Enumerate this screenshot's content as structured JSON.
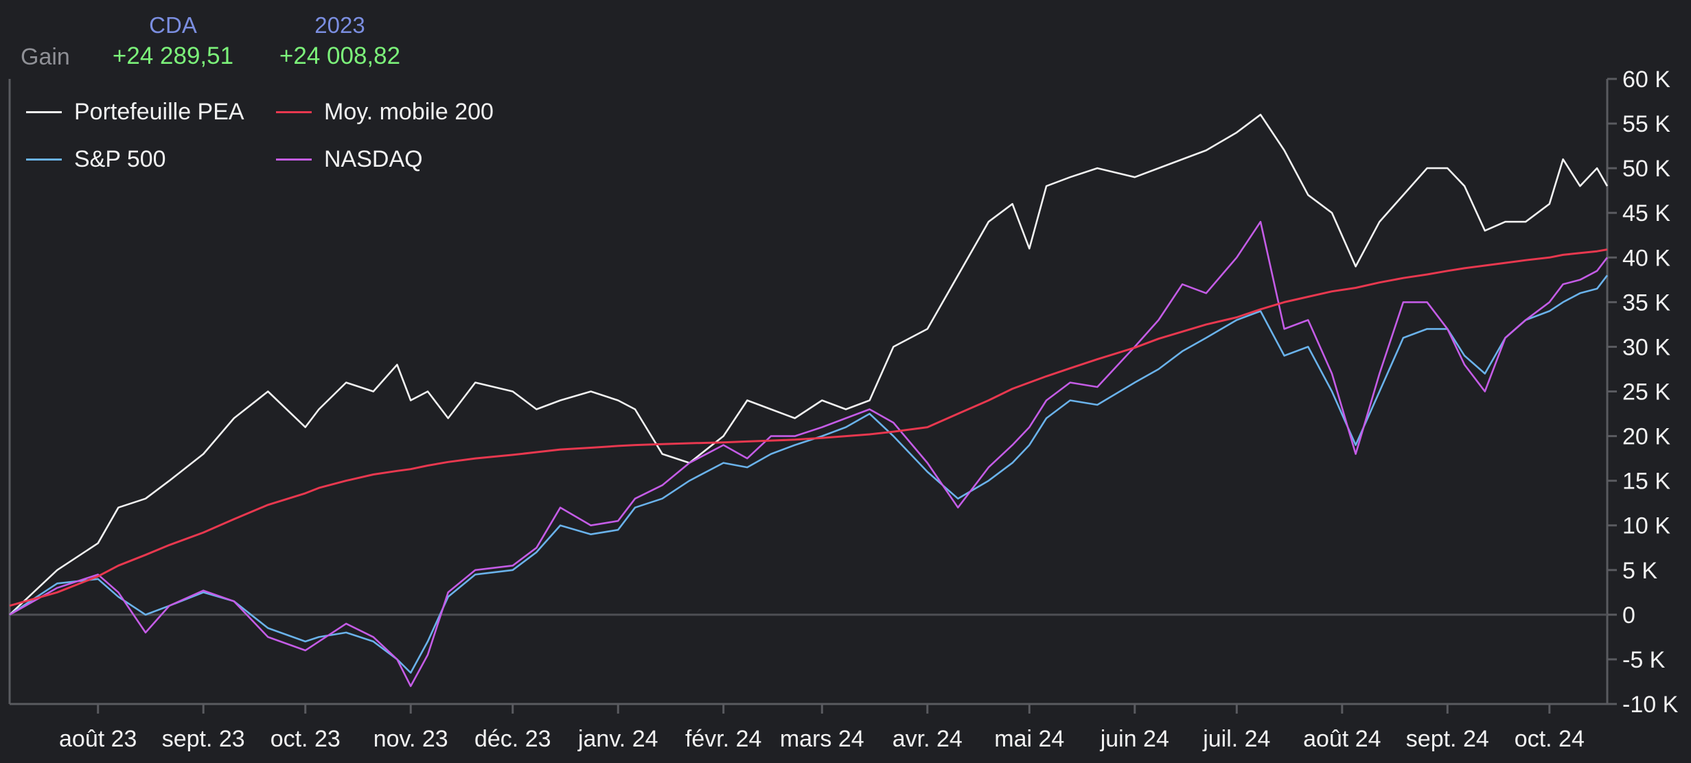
{
  "header": {
    "row_label": "Gain",
    "columns": [
      {
        "title": "CDA",
        "value": "+24 289,51"
      },
      {
        "title": "2023",
        "value": "+24 008,82"
      }
    ]
  },
  "colors": {
    "background": "#1f2024",
    "portefeuille": "#f2f2f2",
    "moyenne": "#e8384f",
    "sp500": "#6ab2ea",
    "nasdaq": "#c45ce6",
    "axis": "#5a5b60",
    "zero_line": "#4e4f54",
    "tick_text": "#f2f2f2",
    "gain_value": "#7cf27a",
    "column_title": "#7b8ee0"
  },
  "chart_data": {
    "type": "line",
    "title": "",
    "xlabel": "",
    "ylabel": "",
    "ylim": [
      -10000,
      60000
    ],
    "yticks": [
      {
        "value": 60000,
        "label": "60 K"
      },
      {
        "value": 55000,
        "label": "55 K"
      },
      {
        "value": 50000,
        "label": "50 K"
      },
      {
        "value": 45000,
        "label": "45 K"
      },
      {
        "value": 40000,
        "label": "40 K"
      },
      {
        "value": 35000,
        "label": "35 K"
      },
      {
        "value": 30000,
        "label": "30 K"
      },
      {
        "value": 25000,
        "label": "25 K"
      },
      {
        "value": 20000,
        "label": "20 K"
      },
      {
        "value": 15000,
        "label": "15 K"
      },
      {
        "value": 10000,
        "label": "10 K"
      },
      {
        "value": 5000,
        "label": "5 K"
      },
      {
        "value": 0,
        "label": "0"
      },
      {
        "value": -5000,
        "label": "-5 K"
      },
      {
        "value": -10000,
        "label": "-10 K"
      }
    ],
    "xlim": [
      "2023-07-06",
      "2024-10-18"
    ],
    "xticks": [
      {
        "date": "2023-08-01",
        "label": "août 23"
      },
      {
        "date": "2023-09-01",
        "label": "sept. 23"
      },
      {
        "date": "2023-10-01",
        "label": "oct. 23"
      },
      {
        "date": "2023-11-01",
        "label": "nov. 23"
      },
      {
        "date": "2023-12-01",
        "label": "déc. 23"
      },
      {
        "date": "2024-01-01",
        "label": "janv. 24"
      },
      {
        "date": "2024-02-01",
        "label": "févr. 24"
      },
      {
        "date": "2024-03-01",
        "label": "mars 24"
      },
      {
        "date": "2024-04-01",
        "label": "avr. 24"
      },
      {
        "date": "2024-05-01",
        "label": "mai 24"
      },
      {
        "date": "2024-06-01",
        "label": "juin 24"
      },
      {
        "date": "2024-07-01",
        "label": "juil. 24"
      },
      {
        "date": "2024-08-01",
        "label": "août 24"
      },
      {
        "date": "2024-09-01",
        "label": "sept. 24"
      },
      {
        "date": "2024-10-01",
        "label": "oct. 24"
      }
    ],
    "legend": "top-left",
    "grid": false,
    "x": [
      "2023-07-06",
      "2023-07-20",
      "2023-08-01",
      "2023-08-07",
      "2023-08-15",
      "2023-08-22",
      "2023-09-01",
      "2023-09-10",
      "2023-09-20",
      "2023-10-01",
      "2023-10-05",
      "2023-10-13",
      "2023-10-21",
      "2023-10-28",
      "2023-11-01",
      "2023-11-06",
      "2023-11-12",
      "2023-11-20",
      "2023-12-01",
      "2023-12-08",
      "2023-12-15",
      "2023-12-24",
      "2024-01-01",
      "2024-01-06",
      "2024-01-14",
      "2024-01-22",
      "2024-02-01",
      "2024-02-08",
      "2024-02-15",
      "2024-02-22",
      "2024-03-01",
      "2024-03-08",
      "2024-03-15",
      "2024-03-22",
      "2024-04-01",
      "2024-04-10",
      "2024-04-19",
      "2024-04-26",
      "2024-05-01",
      "2024-05-06",
      "2024-05-13",
      "2024-05-21",
      "2024-06-01",
      "2024-06-08",
      "2024-06-15",
      "2024-06-22",
      "2024-07-01",
      "2024-07-08",
      "2024-07-15",
      "2024-07-22",
      "2024-07-29",
      "2024-08-05",
      "2024-08-12",
      "2024-08-19",
      "2024-08-26",
      "2024-09-01",
      "2024-09-06",
      "2024-09-12",
      "2024-09-18",
      "2024-09-24",
      "2024-10-01",
      "2024-10-05",
      "2024-10-10",
      "2024-10-15",
      "2024-10-18"
    ],
    "series": [
      {
        "name": "Portefeuille PEA",
        "color_key": "portefeuille",
        "values": [
          0,
          5000,
          8000,
          12000,
          13000,
          15000,
          18000,
          22000,
          25000,
          21000,
          23000,
          26000,
          25000,
          28000,
          24000,
          25000,
          22000,
          26000,
          25000,
          23000,
          24000,
          25000,
          24000,
          23000,
          18000,
          17000,
          20000,
          24000,
          23000,
          22000,
          24000,
          23000,
          24000,
          30000,
          32000,
          38000,
          44000,
          46000,
          41000,
          48000,
          49000,
          50000,
          49000,
          50000,
          51000,
          52000,
          54000,
          56000,
          52000,
          47000,
          45000,
          39000,
          44000,
          47000,
          50000,
          50000,
          48000,
          43000,
          44000,
          44000,
          46000,
          51000,
          48000,
          50000,
          48000
        ]
      },
      {
        "name": "Moy. mobile 200",
        "color_key": "moyenne",
        "values": [
          1000,
          2500,
          4300,
          5500,
          6700,
          7800,
          9200,
          10700,
          12300,
          13600,
          14200,
          15000,
          15700,
          16100,
          16300,
          16700,
          17100,
          17500,
          17900,
          18200,
          18500,
          18700,
          18900,
          19000,
          19100,
          19200,
          19300,
          19400,
          19500,
          19600,
          19800,
          20000,
          20200,
          20500,
          21000,
          22500,
          24000,
          25300,
          26000,
          26700,
          27600,
          28600,
          29900,
          30900,
          31700,
          32500,
          33300,
          34200,
          35000,
          35600,
          36200,
          36600,
          37200,
          37700,
          38100,
          38500,
          38800,
          39100,
          39400,
          39700,
          40000,
          40300,
          40500,
          40700,
          40900
        ]
      },
      {
        "name": "S&P 500",
        "color_key": "sp500",
        "values": [
          0,
          3500,
          4000,
          2000,
          0,
          1000,
          2500,
          1500,
          -1500,
          -3000,
          -2500,
          -2000,
          -3000,
          -5000,
          -6500,
          -3000,
          2000,
          4500,
          5000,
          7000,
          10000,
          9000,
          9500,
          12000,
          13000,
          15000,
          17000,
          16500,
          18000,
          19000,
          20000,
          21000,
          22500,
          20000,
          16000,
          13000,
          15000,
          17000,
          19000,
          22000,
          24000,
          23500,
          26000,
          27500,
          29500,
          31000,
          33000,
          34000,
          29000,
          30000,
          25000,
          19000,
          25000,
          31000,
          32000,
          32000,
          29000,
          27000,
          31000,
          33000,
          34000,
          35000,
          36000,
          36500,
          38000
        ]
      },
      {
        "name": "NASDAQ",
        "color_key": "nasdaq",
        "values": [
          0,
          3000,
          4500,
          2500,
          -2000,
          1000,
          2700,
          1500,
          -2500,
          -4000,
          -3000,
          -1000,
          -2500,
          -5000,
          -8000,
          -4500,
          2500,
          5000,
          5500,
          7500,
          12000,
          10000,
          10500,
          13000,
          14500,
          17000,
          19000,
          17500,
          20000,
          20000,
          21000,
          22000,
          23000,
          21500,
          17000,
          12000,
          16500,
          19000,
          21000,
          24000,
          26000,
          25500,
          30000,
          33000,
          37000,
          36000,
          40000,
          44000,
          32000,
          33000,
          27000,
          18000,
          27000,
          35000,
          35000,
          32000,
          28000,
          25000,
          31000,
          33000,
          35000,
          37000,
          37500,
          38500,
          40000
        ]
      }
    ]
  }
}
